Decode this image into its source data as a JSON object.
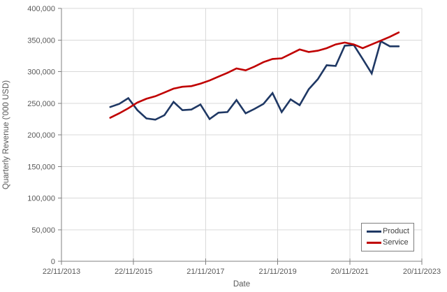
{
  "chart_data": {
    "type": "line",
    "title": "",
    "xlabel": "Date",
    "ylabel": "Quarterly Revenue ('000 USD)",
    "x": [
      "31/03/2015",
      "30/06/2015",
      "30/09/2015",
      "31/12/2015",
      "31/03/2016",
      "30/06/2016",
      "30/09/2016",
      "31/12/2016",
      "31/03/2017",
      "30/06/2017",
      "30/09/2017",
      "31/12/2017",
      "31/03/2018",
      "30/06/2018",
      "30/09/2018",
      "31/12/2018",
      "31/03/2019",
      "30/06/2019",
      "30/09/2019",
      "31/12/2019",
      "31/03/2020",
      "30/06/2020",
      "30/09/2020",
      "31/12/2020",
      "31/03/2021",
      "30/06/2021",
      "30/09/2021",
      "31/12/2021",
      "31/03/2022",
      "30/06/2022",
      "30/09/2022",
      "31/12/2022",
      "31/03/2023"
    ],
    "series": [
      {
        "name": "Product",
        "color": "#1F3864",
        "values": [
          244000,
          249000,
          258000,
          239000,
          226000,
          224000,
          231000,
          252000,
          239000,
          240000,
          248000,
          225000,
          235000,
          236000,
          255000,
          234000,
          241000,
          249000,
          266000,
          236000,
          256000,
          247000,
          272000,
          288000,
          310000,
          309000,
          341000,
          342000,
          320000,
          297000,
          348000,
          340000,
          340000
        ]
      },
      {
        "name": "Service",
        "color": "#C00000",
        "values": [
          227000,
          234000,
          242000,
          251000,
          257000,
          261000,
          267000,
          273000,
          276000,
          277000,
          281000,
          286000,
          292000,
          298000,
          305000,
          302000,
          308000,
          315000,
          320000,
          321000,
          328000,
          335000,
          331000,
          333000,
          337000,
          343000,
          346000,
          343000,
          337000,
          343000,
          349000,
          355000,
          362000
        ]
      }
    ],
    "ylim": [
      0,
      400000
    ],
    "y_ticks": [
      0,
      50000,
      100000,
      150000,
      200000,
      250000,
      300000,
      350000,
      400000
    ],
    "y_tick_labels": [
      "0",
      "50,000",
      "100,000",
      "150,000",
      "200,000",
      "250,000",
      "300,000",
      "350,000",
      "400,000"
    ],
    "x_tick_labels": [
      "22/11/2013",
      "22/11/2015",
      "21/11/2017",
      "21/11/2019",
      "20/11/2021",
      "20/11/2023"
    ],
    "x_axis_start_date": "22/11/2013",
    "x_axis_end_date": "20/11/2023",
    "grid": true,
    "legend_position": "inside-bottom-right"
  },
  "styles": {
    "background": "#FFFFFF",
    "axis_text_color": "#595959",
    "axis_line_color": "#808080",
    "gridline_color": "#D9D9D9",
    "legend_border_color": "#7F7F7F",
    "legend_text_color": "#404040"
  }
}
